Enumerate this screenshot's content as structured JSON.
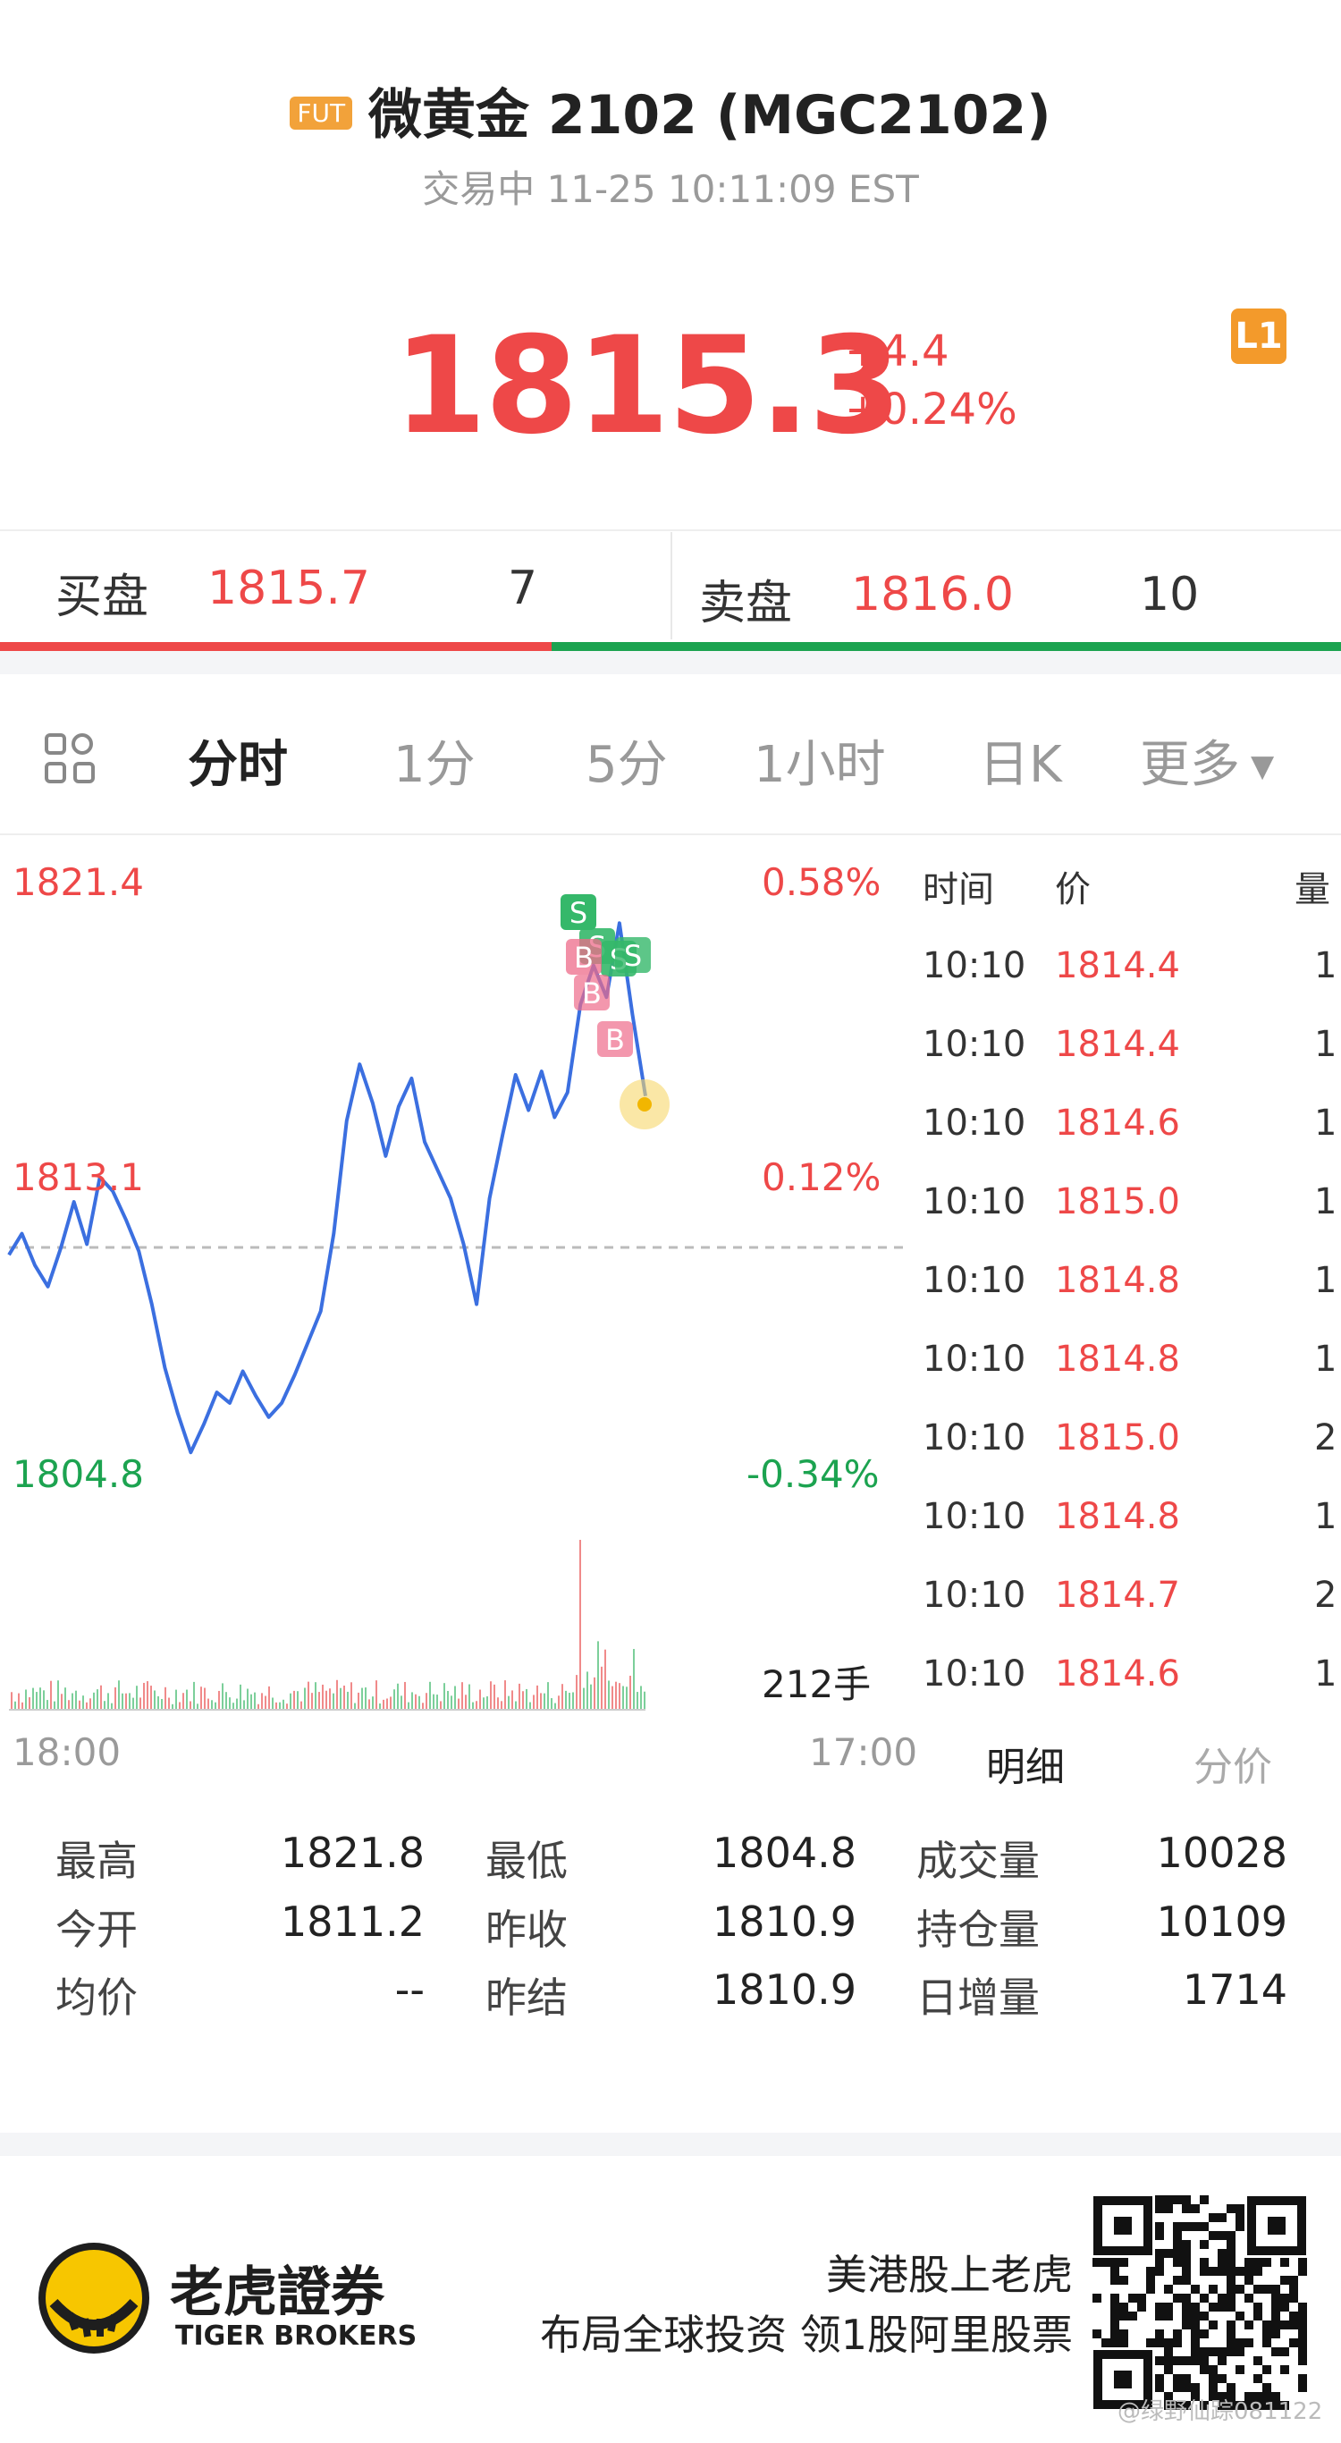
{
  "header": {
    "badge": "FUT",
    "title": "微黄金 2102 (MGC2102)",
    "status": "交易中 11-25 10:11:09 EST"
  },
  "quote": {
    "price": "1815.3",
    "change": "+4.4",
    "change_pct": "+0.24%",
    "level_badge": "L1"
  },
  "orderbook": {
    "bid_label": "买盘",
    "bid_price": "1815.7",
    "bid_qty": "7",
    "ask_label": "卖盘",
    "ask_price": "1816.0",
    "ask_qty": "10"
  },
  "tabs": {
    "items": [
      "分时",
      "1分",
      "5分",
      "1小时",
      "日K",
      "更多"
    ],
    "active": "分时"
  },
  "chart": {
    "y_high": "1821.4",
    "y_mid": "1813.1",
    "y_low": "1804.8",
    "pct_high": "0.58%",
    "pct_mid": "0.12%",
    "pct_low": "-0.34%",
    "volume_label": "212手",
    "x_start": "18:00",
    "x_end": "17:00",
    "markers": [
      "S",
      "S",
      "S",
      "S",
      "B",
      "B",
      "B"
    ]
  },
  "chart_data": {
    "type": "line",
    "title": "",
    "ylim": [
      1804.8,
      1821.4
    ],
    "reference": 1810.9,
    "x_range": [
      "18:00",
      "17:00"
    ],
    "values": [
      1810.8,
      1811.4,
      1810.5,
      1809.9,
      1811.0,
      1812.3,
      1811.1,
      1813.0,
      1812.6,
      1811.8,
      1810.9,
      1809.4,
      1807.6,
      1806.3,
      1805.2,
      1806.0,
      1806.9,
      1806.6,
      1807.5,
      1806.8,
      1806.2,
      1806.6,
      1807.4,
      1808.3,
      1809.2,
      1811.4,
      1814.6,
      1816.2,
      1815.1,
      1813.6,
      1815.0,
      1815.8,
      1814.0,
      1813.2,
      1812.4,
      1811.1,
      1809.4,
      1812.4,
      1814.2,
      1815.9,
      1814.9,
      1816.0,
      1814.7,
      1815.4,
      1817.9,
      1819.0,
      1818.1,
      1820.2,
      1817.6,
      1815.3
    ]
  },
  "trades": {
    "headers": [
      "时间",
      "价",
      "量"
    ],
    "rows": [
      {
        "time": "10:10",
        "price": "1814.4",
        "vol": "1"
      },
      {
        "time": "10:10",
        "price": "1814.4",
        "vol": "1"
      },
      {
        "time": "10:10",
        "price": "1814.6",
        "vol": "1"
      },
      {
        "time": "10:10",
        "price": "1815.0",
        "vol": "1"
      },
      {
        "time": "10:10",
        "price": "1814.8",
        "vol": "1"
      },
      {
        "time": "10:10",
        "price": "1814.8",
        "vol": "1"
      },
      {
        "time": "10:10",
        "price": "1815.0",
        "vol": "2"
      },
      {
        "time": "10:10",
        "price": "1814.8",
        "vol": "1"
      },
      {
        "time": "10:10",
        "price": "1814.7",
        "vol": "2"
      },
      {
        "time": "10:10",
        "price": "1814.6",
        "vol": "1"
      }
    ],
    "tab_detail": "明细",
    "tab_price": "分价"
  },
  "stats": {
    "high_label": "最高",
    "high": "1821.8",
    "low_label": "最低",
    "low": "1804.8",
    "volume_label": "成交量",
    "volume": "10028",
    "open_label": "今开",
    "open": "1811.2",
    "prev_close_label": "昨收",
    "prev_close": "1810.9",
    "oi_label": "持仓量",
    "oi": "10109",
    "avg_label": "均价",
    "avg": "--",
    "prev_settle_label": "昨结",
    "prev_settle": "1810.9",
    "oi_change_label": "日增量",
    "oi_change": "1714"
  },
  "footer": {
    "brand_cn": "老虎證券",
    "brand_en": "TIGER BROKERS",
    "slogan1": "美港股上老虎",
    "slogan2": "布局全球投资 领1股阿里股票",
    "watermark": "@绿野仙踪081122"
  },
  "colors": {
    "up": "#ee4848",
    "down": "#1ca350",
    "line": "#3b6fe0"
  }
}
